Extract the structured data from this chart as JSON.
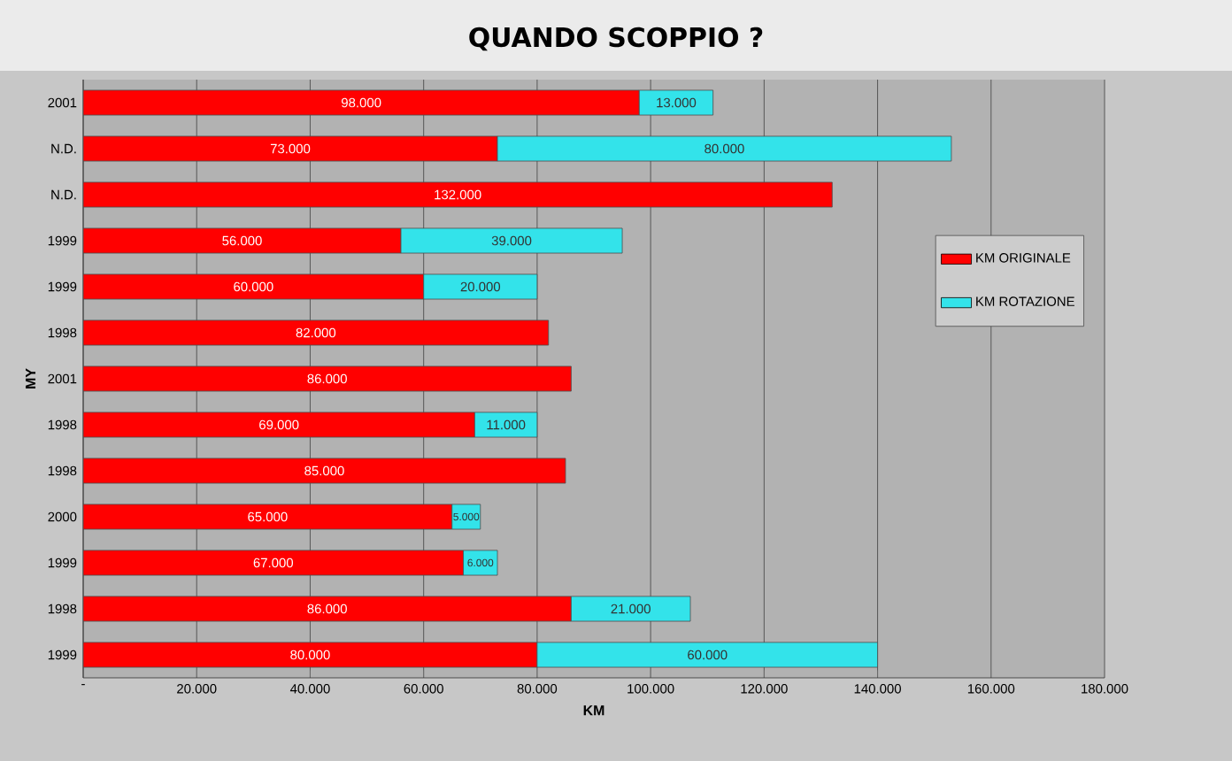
{
  "chart_data": {
    "type": "bar",
    "orientation": "horizontal",
    "stacked": true,
    "title": "QUANDO SCOPPIO ?",
    "xlabel": "KM",
    "ylabel": "MY",
    "categories": [
      "2001",
      "N.D.",
      "N.D.",
      "1999",
      "1999",
      "1998",
      "2001",
      "1998",
      "1998",
      "2000",
      "1999",
      "1998",
      "1999"
    ],
    "series": [
      {
        "name": "KM ORIGINALE",
        "color": "#ff0000",
        "values": [
          98000,
          73000,
          132000,
          56000,
          60000,
          82000,
          86000,
          69000,
          85000,
          65000,
          67000,
          86000,
          80000
        ],
        "value_labels": [
          "98.000",
          "73.000",
          "132.000",
          "56.000",
          "60.000",
          "82.000",
          "86.000",
          "69.000",
          "85.000",
          "65.000",
          "67.000",
          "86.000",
          "80.000"
        ]
      },
      {
        "name": "KM ROTAZIONE",
        "color": "#33e3ea",
        "values": [
          13000,
          80000,
          null,
          39000,
          20000,
          null,
          null,
          11000,
          null,
          5000,
          6000,
          21000,
          60000
        ],
        "value_labels": [
          "13.000",
          "80.000",
          null,
          "39.000",
          "20.000",
          null,
          null,
          "11.000",
          null,
          "5.000",
          "6.000",
          "21.000",
          "60.000"
        ]
      }
    ],
    "xlim": [
      0,
      180000
    ],
    "xticks": [
      {
        "value": 0,
        "label": "-"
      },
      {
        "value": 20000,
        "label": "20.000"
      },
      {
        "value": 40000,
        "label": "40.000"
      },
      {
        "value": 60000,
        "label": "60.000"
      },
      {
        "value": 80000,
        "label": "80.000"
      },
      {
        "value": 100000,
        "label": "100.000"
      },
      {
        "value": 120000,
        "label": "120.000"
      },
      {
        "value": 140000,
        "label": "140.000"
      },
      {
        "value": 160000,
        "label": "160.000"
      },
      {
        "value": 180000,
        "label": "180.000"
      }
    ],
    "grid": "x",
    "legend": "right"
  }
}
